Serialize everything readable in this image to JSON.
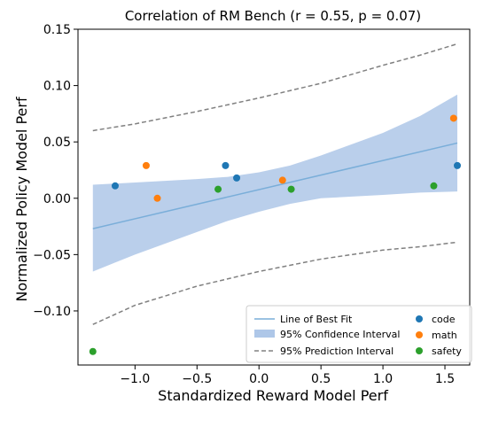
{
  "chart_data": {
    "type": "scatter",
    "title": "Correlation of RM Bench (r = 0.55, p = 0.07)",
    "xlabel": "Standardized Reward Model Perf",
    "ylabel": "Normalized Policy Model Perf",
    "xlim": [
      -1.46,
      1.7
    ],
    "ylim": [
      -0.148,
      0.15
    ],
    "x_ticks": [
      -1.0,
      -0.5,
      0.0,
      0.5,
      1.0,
      1.5
    ],
    "x_tick_labels": [
      "−1.0",
      "−0.5",
      "0.0",
      "0.5",
      "1.0",
      "1.5"
    ],
    "y_ticks": [
      0.15,
      0.1,
      0.05,
      0.0,
      -0.05,
      -0.1
    ],
    "y_tick_labels": [
      "0.15",
      "0.10",
      "0.05",
      "0.00",
      "−0.05",
      "−0.10"
    ],
    "grid": false,
    "legend_position": "lower-right",
    "legend": {
      "line_of_best_fit": "Line of Best Fit",
      "confidence_interval": "95% Confidence Interval",
      "prediction_interval": "95% Prediction Interval"
    },
    "series": [
      {
        "name": "code",
        "color": "#1f77b4",
        "points": [
          [
            -1.16,
            0.011
          ],
          [
            -0.27,
            0.029
          ],
          [
            -0.18,
            0.018
          ],
          [
            1.6,
            0.029
          ]
        ]
      },
      {
        "name": "math",
        "color": "#ff7f0e",
        "points": [
          [
            -0.91,
            0.029
          ],
          [
            -0.82,
            0.0
          ],
          [
            0.19,
            0.016
          ],
          [
            1.57,
            0.071
          ]
        ]
      },
      {
        "name": "safety",
        "color": "#2ca02c",
        "points": [
          [
            -1.34,
            -0.136
          ],
          [
            -0.33,
            0.008
          ],
          [
            0.26,
            0.008
          ],
          [
            1.41,
            0.011
          ]
        ]
      }
    ],
    "fit_line": {
      "color": "#7aaed9",
      "x": [
        -1.34,
        1.6
      ],
      "y": [
        -0.027,
        0.049
      ]
    },
    "confidence_band": {
      "color": "#aec7e8",
      "x": [
        -1.34,
        -1.0,
        -0.5,
        -0.25,
        0.0,
        0.25,
        0.5,
        1.0,
        1.3,
        1.6
      ],
      "upper": [
        0.012,
        0.014,
        0.017,
        0.019,
        0.023,
        0.029,
        0.038,
        0.058,
        0.073,
        0.092
      ],
      "lower": [
        -0.065,
        -0.05,
        -0.03,
        -0.02,
        -0.012,
        -0.005,
        0.0,
        0.003,
        0.005,
        0.006
      ]
    },
    "prediction_band": {
      "color": "#808080",
      "x": [
        -1.34,
        -1.0,
        -0.5,
        0.0,
        0.5,
        1.0,
        1.3,
        1.6
      ],
      "upper": [
        0.06,
        0.066,
        0.077,
        0.089,
        0.102,
        0.118,
        0.127,
        0.137
      ],
      "lower": [
        -0.112,
        -0.095,
        -0.078,
        -0.065,
        -0.054,
        -0.046,
        -0.043,
        -0.039
      ]
    }
  }
}
